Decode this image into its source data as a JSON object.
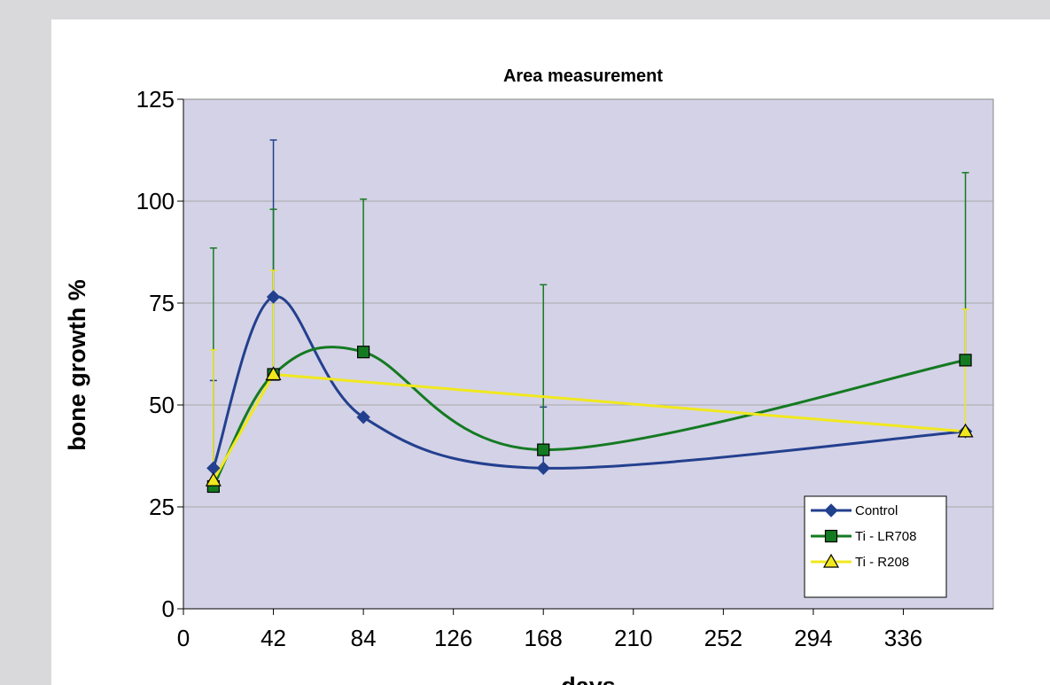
{
  "chart_data": {
    "type": "line",
    "title": "Area measurement",
    "xlabel": "days",
    "ylabel": "bone growth %",
    "xlim": [
      0,
      378
    ],
    "ylim": [
      0,
      125
    ],
    "x_ticks": [
      0,
      42,
      84,
      126,
      168,
      210,
      252,
      294,
      336
    ],
    "y_ticks": [
      0,
      25,
      50,
      75,
      100,
      125
    ],
    "grid": "horizontal",
    "legend_position": "bottom-right",
    "plot_background": "#d4d2e6",
    "series": [
      {
        "name": "Control",
        "color": "#23408f",
        "marker": "diamond",
        "x": [
          14,
          42,
          84,
          168,
          365
        ],
        "y": [
          34.5,
          76.5,
          47,
          34.5,
          43.5
        ],
        "error_upper": [
          56,
          115,
          null,
          49.5,
          null
        ]
      },
      {
        "name": "Ti - LR708",
        "color": "#147a22",
        "marker": "square",
        "x": [
          14,
          42,
          84,
          168,
          365
        ],
        "y": [
          30,
          57.5,
          63,
          39,
          61
        ],
        "error_upper": [
          88.5,
          98,
          100.5,
          79.5,
          107
        ]
      },
      {
        "name": "Ti - R208",
        "color": "#f0e81e",
        "marker": "triangle",
        "x": [
          14,
          42,
          365
        ],
        "y": [
          31.5,
          57.5,
          43.5
        ],
        "error_upper": [
          63.5,
          83,
          73.5
        ]
      }
    ]
  }
}
